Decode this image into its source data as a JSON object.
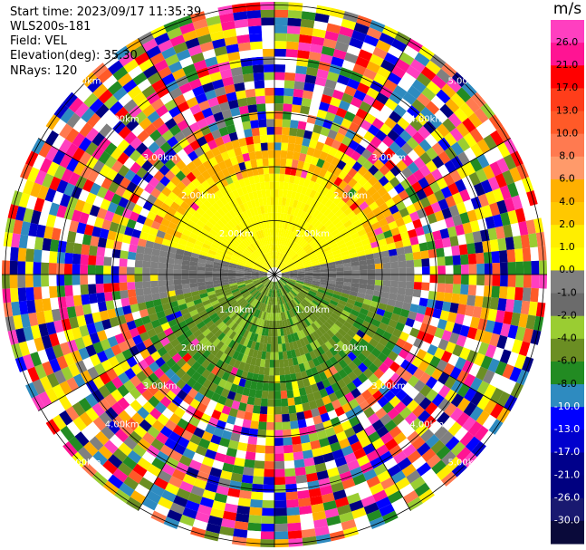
{
  "info": {
    "start_time": "Start time: 2023/09/17 11:35:39",
    "instrument": "WLS200s-181",
    "field": "Field: VEL",
    "elevation": "Elevation(deg): 35.30",
    "nrays": "NRays: 120"
  },
  "colorbar": {
    "unit": "m/s",
    "labels": [
      "26.0",
      "21.0",
      "17.0",
      "13.0",
      "10.0",
      "8.0",
      "6.0",
      "4.0",
      "2.0",
      "1.0",
      "0.0",
      "-1.0",
      "-2.0",
      "-4.0",
      "-6.0",
      "-8.0",
      "-10.0",
      "-13.0",
      "-17.0",
      "-21.0",
      "-26.0",
      "-30.0"
    ],
    "colors": [
      "#ff3fc0",
      "#ff1493",
      "#ff0000",
      "#ff3d1a",
      "#ff5a28",
      "#ff7a50",
      "#ff9a6a",
      "#ffb000",
      "#ffc800",
      "#ffee00",
      "#ffff00",
      "#808080",
      "#6b6b6b",
      "#9acd32",
      "#6b8e23",
      "#228b22",
      "#2e8bc0",
      "#0000ff",
      "#0000cd",
      "#00008b",
      "#000080",
      "#191970",
      "#0a0a3a"
    ]
  },
  "chart_data": {
    "type": "heatmap",
    "projection": "polar (PPI)",
    "field": "VEL",
    "units": "m/s",
    "nrays": 120,
    "elevation_deg": 35.3,
    "range_rings": [
      {
        "label_left": "1.00km",
        "label_right": "1.00km"
      },
      {
        "label_left": "2.00km",
        "label_right": "2.00km"
      },
      {
        "label_left": "3.00km",
        "label_right": "3.00km"
      },
      {
        "label_left": "4.00km",
        "label_right": "4.00km"
      },
      {
        "label_left": "5.00km",
        "label_right": "5.00km"
      }
    ],
    "upper_ring_labels": [
      "2.00km",
      "2.00km",
      "3.00km",
      "4.00km",
      "5.00km"
    ],
    "colorbar_range": [
      -30.0,
      26.0
    ]
  }
}
